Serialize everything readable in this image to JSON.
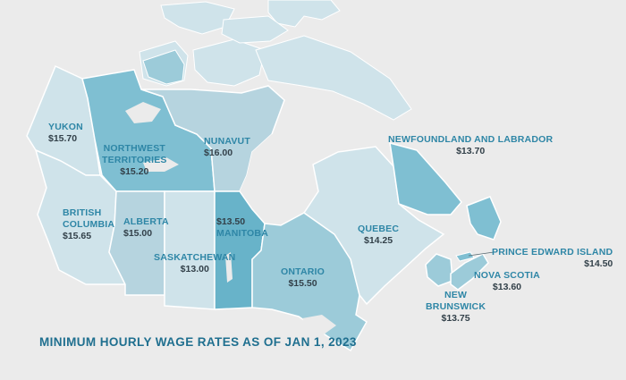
{
  "title": "MINIMUM HOURLY WAGE RATES AS OF JAN 1, 2023",
  "colors": {
    "background": "#ebebeb",
    "label_name": "#2e86a6",
    "label_wage": "#33414a",
    "title": "#1f6f8f",
    "tier_lightest": "#cfe3ea",
    "tier_light": "#b6d4df",
    "tier_mid": "#9ccbd9",
    "tier_strong": "#7fbfd2",
    "tier_darkest": "#68b3c9"
  },
  "regions": [
    {
      "id": "yukon",
      "name": "YUKON",
      "wage": "$15.70"
    },
    {
      "id": "northwest-territories",
      "name_lines": [
        "NORTHWEST",
        "TERRITORIES"
      ],
      "wage": "$15.20"
    },
    {
      "id": "nunavut",
      "name": "NUNAVUT",
      "wage": "$16.00"
    },
    {
      "id": "british-columbia",
      "name_lines": [
        "BRITISH",
        "COLUMBIA"
      ],
      "wage": "$15.65"
    },
    {
      "id": "alberta",
      "name": "ALBERTA",
      "wage": "$15.00"
    },
    {
      "id": "saskatchewan",
      "name": "SASKATCHEWAN",
      "wage": "$13.00"
    },
    {
      "id": "manitoba",
      "name": "MANITOBA",
      "wage": "$13.50"
    },
    {
      "id": "ontario",
      "name": "ONTARIO",
      "wage": "$15.50"
    },
    {
      "id": "quebec",
      "name": "QUEBEC",
      "wage": "$14.25"
    },
    {
      "id": "newfoundland-and-labrador",
      "name": "NEWFOUNDLAND AND LABRADOR",
      "wage": "$13.70"
    },
    {
      "id": "prince-edward-island",
      "name": "PRINCE EDWARD ISLAND",
      "wage": "$14.50"
    },
    {
      "id": "nova-scotia",
      "name": "NOVA SCOTIA",
      "wage": "$13.60"
    },
    {
      "id": "new-brunswick",
      "name_lines": [
        "NEW",
        "BRUNSWICK"
      ],
      "wage": "$13.75"
    }
  ]
}
